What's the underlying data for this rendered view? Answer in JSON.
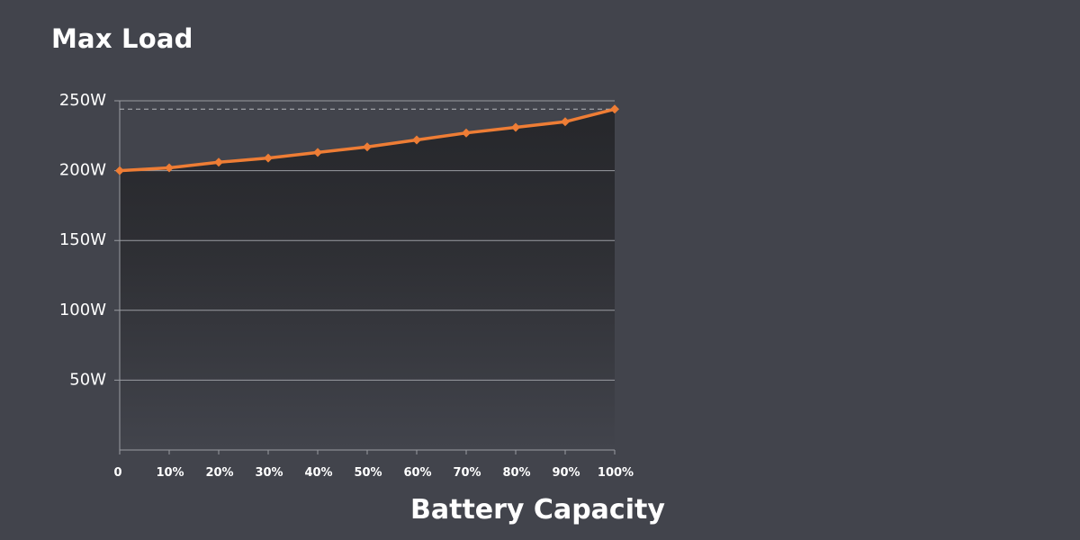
{
  "chart_data": {
    "type": "area",
    "title": "Max Load",
    "xlabel": "Battery Capacity",
    "ylabel": "",
    "categories": [
      "0",
      "10%",
      "20%",
      "30%",
      "40%",
      "50%",
      "60%",
      "70%",
      "80%",
      "90%",
      "100%"
    ],
    "x": [
      0,
      10,
      20,
      30,
      40,
      50,
      60,
      70,
      80,
      90,
      100
    ],
    "series": [
      {
        "values": [
          200,
          202,
          206,
          209,
          213,
          217,
          222,
          227,
          231,
          235,
          244
        ]
      }
    ],
    "y_ticks": [
      {
        "value": 50,
        "label": "50W"
      },
      {
        "value": 100,
        "label": "100W"
      },
      {
        "value": 150,
        "label": "150W"
      },
      {
        "value": 200,
        "label": "200W"
      },
      {
        "value": 250,
        "label": "250W"
      }
    ],
    "ylim": [
      0,
      250
    ],
    "xlim": [
      0,
      100
    ],
    "grid": true,
    "reference_line": {
      "value": 244,
      "style": "dashed"
    },
    "colors": {
      "background": "#42444c",
      "line": "#ee7d35",
      "area_top": "#26272b",
      "grid": "#9a9ca2",
      "reference": "#b5b7bc"
    }
  }
}
